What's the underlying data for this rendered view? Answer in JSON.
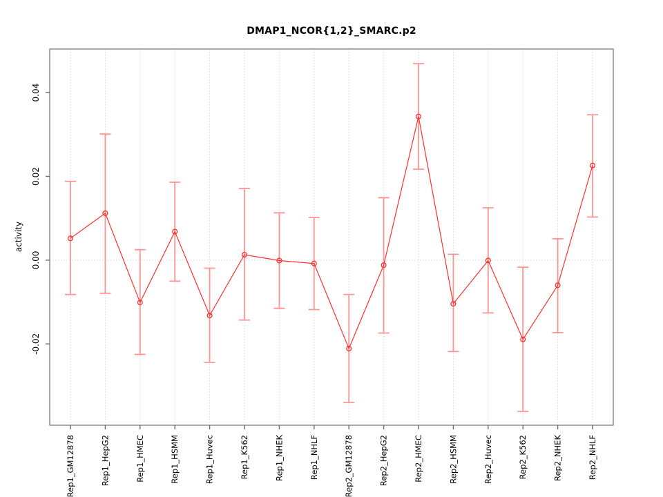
{
  "chart_data": {
    "type": "line",
    "title": "DMAP1_NCOR{1,2}_SMARC.p2",
    "xlabel": "",
    "ylabel": "activity",
    "categories": [
      "Rep1_GM12878",
      "Rep1_HepG2",
      "Rep1_HMEC",
      "Rep1_HSMM",
      "Rep1_Huvec",
      "Rep1_K562",
      "Rep1_NHEK",
      "Rep1_NHLF",
      "Rep2_GM12878",
      "Rep2_HepG2",
      "Rep2_HMEC",
      "Rep2_HSMM",
      "Rep2_Huvec",
      "Rep2_K562",
      "Rep2_NHEK",
      "Rep2_NHLF"
    ],
    "series": [
      {
        "name": "activity",
        "values": [
          0.0052,
          0.0112,
          -0.0101,
          0.0068,
          -0.0132,
          0.0013,
          -0.0001,
          -0.0008,
          -0.0211,
          -0.0012,
          0.0343,
          -0.0104,
          -0.0001,
          -0.0189,
          -0.006,
          0.0226
        ],
        "lower": [
          -0.0082,
          -0.0079,
          -0.0225,
          -0.005,
          -0.0244,
          -0.0143,
          -0.0115,
          -0.0118,
          -0.034,
          -0.0174,
          0.0217,
          -0.0218,
          -0.0126,
          -0.0361,
          -0.0173,
          0.0103
        ],
        "upper": [
          0.0188,
          0.0301,
          0.0025,
          0.0186,
          -0.0019,
          0.0171,
          0.0113,
          0.0102,
          -0.0082,
          0.0149,
          0.0469,
          0.0014,
          0.0125,
          -0.0017,
          0.0051,
          0.0347
        ]
      }
    ],
    "ylim": [
      -0.0394,
      0.0504
    ],
    "yticks": [
      -0.02,
      0,
      0.02,
      0.04
    ],
    "ytick_labels": [
      "-0.02",
      "0.00",
      "0.02",
      "0.04"
    ],
    "grid": {
      "vertical_at_categories": true,
      "horizontal_at_zero": true,
      "line_style": "dotted"
    },
    "legend_position": "none",
    "marker": "open-circle",
    "colors": {
      "series_line": "#ff3030",
      "marker_stroke": "#ff3030",
      "error_bar": "#ff9494",
      "grid_line": "#d9d9d9",
      "axis_box": "#848484",
      "tick": "#6a6a6a",
      "label_text": "#000000"
    }
  }
}
